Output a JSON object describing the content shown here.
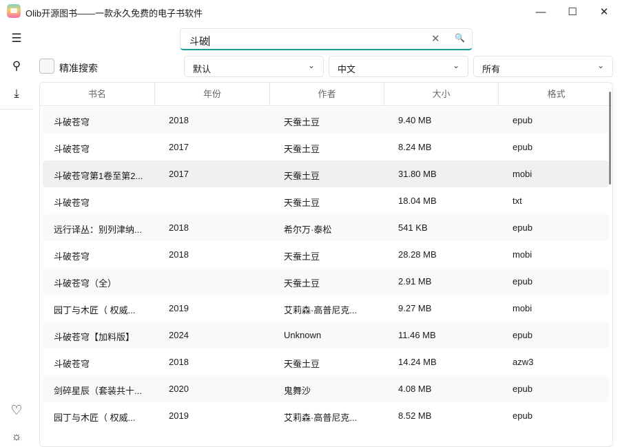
{
  "window": {
    "title": "Olib开源图书——一款永久免费的电子书软件",
    "minimize": "—",
    "maximize": "☐",
    "close": "✕"
  },
  "sidebar": {
    "items": [
      {
        "icon": "menu-icon",
        "glyph": "☰"
      },
      {
        "icon": "search-icon",
        "glyph": "⚲"
      },
      {
        "icon": "download-icon",
        "glyph": "⤓"
      },
      {
        "icon": "heart-icon",
        "glyph": "♡"
      },
      {
        "icon": "theme-icon",
        "glyph": "☼"
      }
    ]
  },
  "search": {
    "value": "斗破",
    "clear": "✕",
    "submit": "🔍"
  },
  "filters": {
    "exact_label": "精准搜索",
    "exact_checked": false,
    "sort": "默认",
    "language": "中文",
    "format": "所有",
    "chevron": "⌄"
  },
  "table": {
    "headers": [
      "书名",
      "年份",
      "作者",
      "大小",
      "格式"
    ],
    "rows": [
      [
        "斗破苍穹",
        "2018",
        "天蚕土豆",
        "9.40 MB",
        "epub"
      ],
      [
        "斗破苍穹",
        "2017",
        "天蚕土豆",
        "8.24 MB",
        "epub"
      ],
      [
        "斗破苍穹第1卷至第2...",
        "2017",
        "天蚕土豆",
        "31.80 MB",
        "mobi"
      ],
      [
        "斗破苍穹",
        "",
        "天蚕土豆",
        "18.04 MB",
        "txt"
      ],
      [
        "远行译丛：别列津纳...",
        "2018",
        "希尔万·泰松",
        "541 KB",
        "epub"
      ],
      [
        "斗破苍穹",
        "2018",
        "天蚕土豆",
        "28.28 MB",
        "mobi"
      ],
      [
        "斗破苍穹（全）",
        "",
        "天蚕土豆",
        "2.91 MB",
        "epub"
      ],
      [
        "园丁与木匠（ 权威...",
        "2019",
        "艾莉森·高普尼克...",
        "9.27 MB",
        "mobi"
      ],
      [
        "斗破苍穹【加料版】",
        "2024",
        "Unknown",
        "11.46 MB",
        "epub"
      ],
      [
        "斗破苍穹",
        "2018",
        "天蚕土豆",
        "14.24 MB",
        "azw3"
      ],
      [
        "剑碎星辰（套装共十...",
        "2020",
        "鬼舞沙",
        "4.08 MB",
        "epub"
      ],
      [
        "园丁与木匠（ 权威...",
        "2019",
        "艾莉森·高普尼克...",
        "8.52 MB",
        "epub"
      ]
    ]
  }
}
